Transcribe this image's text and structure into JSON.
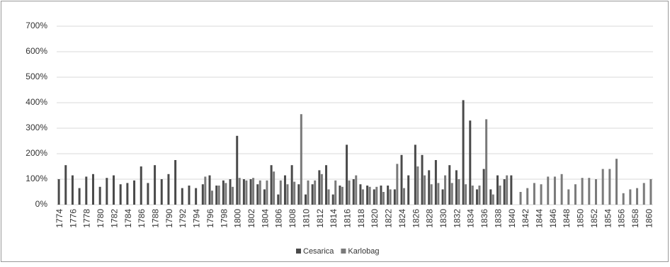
{
  "chart_data": {
    "type": "bar",
    "categories": [
      "1774",
      null,
      "1776",
      null,
      "1778",
      null,
      "1780",
      null,
      "1782",
      null,
      "1784",
      null,
      "1786",
      null,
      "1788",
      null,
      "1790",
      null,
      "1792",
      null,
      "1794",
      null,
      "1796",
      null,
      "1798",
      null,
      "1800",
      null,
      "1802",
      null,
      "1804",
      null,
      "1806",
      null,
      "1808",
      null,
      "1810",
      null,
      "1812",
      null,
      "1814",
      null,
      "1816",
      null,
      "1818",
      null,
      "1820",
      null,
      "1822",
      null,
      "1824",
      null,
      "1826",
      null,
      "1828",
      null,
      "1830",
      null,
      "1832",
      null,
      "1834",
      null,
      "1836",
      null,
      "1838",
      null,
      "1840",
      null,
      "1842",
      null,
      "1844",
      null,
      "1846",
      null,
      "1848",
      null,
      "1850",
      null,
      "1852",
      null,
      "1854",
      null,
      "1856",
      null,
      "1858",
      null,
      "1860"
    ],
    "series": [
      {
        "name": "Cesarica",
        "color": "#4a4a4a",
        "values": [
          100,
          155,
          115,
          65,
          110,
          120,
          70,
          105,
          115,
          80,
          85,
          95,
          150,
          85,
          155,
          100,
          120,
          175,
          65,
          75,
          65,
          80,
          115,
          75,
          95,
          100,
          270,
          100,
          100,
          80,
          60,
          155,
          40,
          115,
          155,
          80,
          40,
          80,
          135,
          155,
          40,
          75,
          235,
          100,
          80,
          75,
          60,
          75,
          75,
          60,
          195,
          115,
          235,
          195,
          135,
          175,
          60,
          155,
          135,
          410,
          330,
          60,
          140,
          60,
          115,
          100,
          115,
          null,
          null,
          null,
          null,
          null,
          null,
          null,
          null,
          null,
          null,
          null,
          null,
          null,
          null,
          null,
          null,
          null,
          null,
          null,
          null
        ]
      },
      {
        "name": "Karlobag",
        "color": "#7a7a7a",
        "values": [
          null,
          null,
          null,
          null,
          null,
          null,
          null,
          null,
          null,
          null,
          null,
          null,
          null,
          null,
          null,
          null,
          null,
          null,
          null,
          null,
          null,
          110,
          55,
          75,
          85,
          70,
          105,
          95,
          105,
          95,
          95,
          130,
          95,
          80,
          90,
          355,
          95,
          95,
          120,
          60,
          95,
          70,
          95,
          115,
          60,
          70,
          70,
          50,
          60,
          160,
          65,
          null,
          150,
          115,
          80,
          85,
          115,
          85,
          100,
          80,
          75,
          75,
          335,
          40,
          75,
          115,
          null,
          50,
          65,
          85,
          80,
          110,
          110,
          120,
          60,
          80,
          105,
          105,
          100,
          140,
          140,
          180,
          45,
          60,
          65,
          85,
          100
        ]
      }
    ],
    "ylim": [
      0,
      700
    ],
    "yticks": [
      {
        "value": 0,
        "label": "0%"
      },
      {
        "value": 100,
        "label": "100%"
      },
      {
        "value": 200,
        "label": "200%"
      },
      {
        "value": 300,
        "label": "300%"
      },
      {
        "value": 400,
        "label": "400%"
      },
      {
        "value": 500,
        "label": "500%"
      },
      {
        "value": 600,
        "label": "600%"
      },
      {
        "value": 700,
        "label": "700%"
      }
    ],
    "grid": true,
    "legend": "bottom"
  }
}
